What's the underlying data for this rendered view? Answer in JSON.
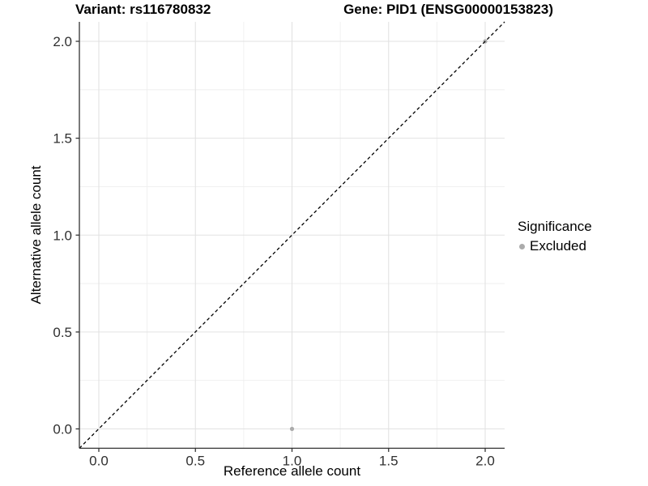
{
  "title": {
    "left": "Variant: rs116780832",
    "right": "Gene: PID1 (ENSG00000153823)"
  },
  "axes": {
    "x": {
      "label": "Reference allele count"
    },
    "y": {
      "label": "Alternative allele count"
    }
  },
  "legend": {
    "title": "Significance",
    "items": [
      {
        "label": "Excluded",
        "color": "#ababab"
      }
    ]
  },
  "colors": {
    "background": "#ffffff",
    "grid_major": "#e2e2e2",
    "grid_minor": "#eeeeee",
    "axis_line": "#333333",
    "tick_mark": "#333333",
    "tick_label": "#303030",
    "point": "#ababab",
    "dashed_line": "#000000"
  },
  "chart_data": {
    "type": "scatter",
    "title": "Variant: rs116780832   Gene: PID1 (ENSG00000153823)",
    "xlabel": "Reference allele count",
    "ylabel": "Alternative allele count",
    "xlim": [
      -0.105,
      2.105
    ],
    "ylim": [
      -0.105,
      2.105
    ],
    "x_ticks": [
      0.0,
      0.5,
      1.0,
      1.5,
      2.0
    ],
    "y_ticks": [
      0.0,
      0.5,
      1.0,
      1.5,
      2.0
    ],
    "grid": "major and minor, light gray on white",
    "legend_position": "right",
    "series": [
      {
        "name": "Excluded",
        "color": "#ababab",
        "points": [
          [
            1.0,
            0.0
          ],
          [
            2.0,
            2.0
          ]
        ]
      }
    ],
    "reference_line": {
      "type": "identity y=x",
      "style": "dashed",
      "color": "#000000"
    }
  }
}
